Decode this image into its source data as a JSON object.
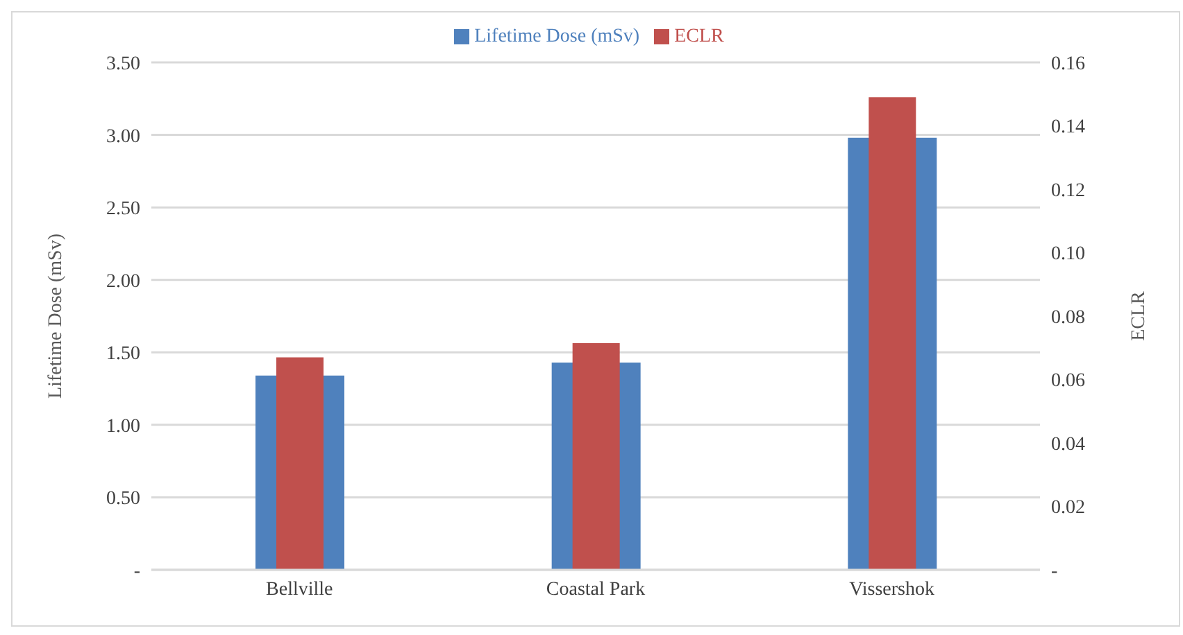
{
  "chart_data": {
    "type": "bar",
    "categories": [
      "Bellville",
      "Coastal Park",
      "Vissershok"
    ],
    "series": [
      {
        "name": "Lifetime Dose (mSv)",
        "color": "#4f81bd",
        "values": [
          1.34,
          1.43,
          2.98
        ]
      },
      {
        "name": "ECLR",
        "color": "#c0504d",
        "values": [
          0.067,
          0.0715,
          0.149
        ],
        "axis": "y2"
      }
    ],
    "ylabel": "Lifetime Dose (mSv)",
    "y2label": "ECLR",
    "ylim": [
      0,
      3.5
    ],
    "yticks": [
      {
        "value": 0,
        "label": "-"
      },
      {
        "value": 0.5,
        "label": "0.50"
      },
      {
        "value": 1,
        "label": "1.00"
      },
      {
        "value": 1.5,
        "label": "1.50"
      },
      {
        "value": 2,
        "label": "2.00"
      },
      {
        "value": 2.5,
        "label": "2.50"
      },
      {
        "value": 3,
        "label": "3.00"
      },
      {
        "value": 3.5,
        "label": "3.50"
      }
    ],
    "y2lim": [
      0,
      0.16
    ],
    "y2ticks": [
      {
        "value": 0,
        "label": "-"
      },
      {
        "value": 0.02,
        "label": "0.02"
      },
      {
        "value": 0.04,
        "label": "0.04"
      },
      {
        "value": 0.06,
        "label": "0.06"
      },
      {
        "value": 0.08,
        "label": "0.08"
      },
      {
        "value": 0.1,
        "label": "0.10"
      },
      {
        "value": 0.12,
        "label": "0.12"
      },
      {
        "value": 0.14,
        "label": "0.14"
      },
      {
        "value": 0.16,
        "label": "0.16"
      }
    ],
    "grid": "y",
    "legend": "top"
  }
}
